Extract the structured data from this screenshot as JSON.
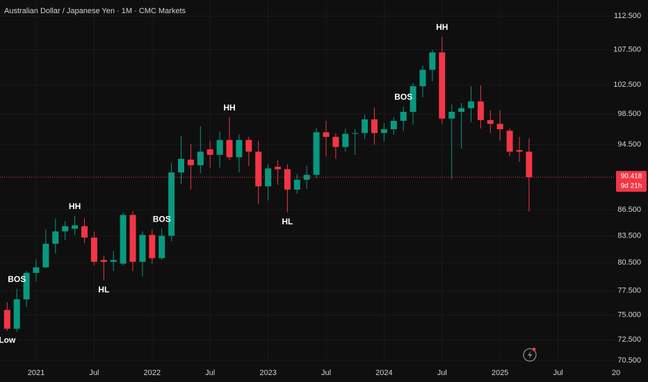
{
  "chart_data": {
    "type": "candlestick",
    "title": "Australian Dollar / Japanese Yen · 1M · CMC Markets",
    "log": true,
    "grid": true,
    "up_color": "#089981",
    "down_color": "#f23645",
    "x": [
      "2020-10",
      "2020-11",
      "2020-12",
      "2021-01",
      "2021-02",
      "2021-03",
      "2021-04",
      "2021-05",
      "2021-06",
      "2021-07",
      "2021-08",
      "2021-09",
      "2021-10",
      "2021-11",
      "2021-12",
      "2022-01",
      "2022-02",
      "2022-03",
      "2022-04",
      "2022-05",
      "2022-06",
      "2022-07",
      "2022-08",
      "2022-09",
      "2022-10",
      "2022-11",
      "2022-12",
      "2023-01",
      "2023-02",
      "2023-03",
      "2023-04",
      "2023-05",
      "2023-06",
      "2023-07",
      "2023-08",
      "2023-09",
      "2023-10",
      "2023-11",
      "2023-12",
      "2024-01",
      "2024-02",
      "2024-03",
      "2024-04",
      "2024-05",
      "2024-06",
      "2024-07",
      "2024-08",
      "2024-09",
      "2024-10",
      "2024-11",
      "2024-12",
      "2025-01",
      "2025-02",
      "2025-03",
      "2025-04"
    ],
    "open": [
      75.5,
      73.6,
      76.6,
      79.4,
      80.0,
      82.6,
      84.0,
      84.3,
      84.6,
      83.3,
      80.8,
      80.6,
      80.4,
      85.9,
      80.6,
      83.6,
      81.0,
      83.5,
      91.0,
      92.6,
      91.9,
      93.9,
      93.2,
      95.1,
      92.9,
      95.1,
      93.6,
      89.3,
      91.7,
      91.4,
      88.9,
      90.1,
      90.7,
      96.1,
      95.5,
      94.2,
      95.9,
      96.0,
      97.8,
      96.0,
      96.5,
      97.6,
      98.8,
      102.3,
      104.6,
      107.1,
      97.9,
      98.8,
      99.3,
      100.2,
      97.7,
      97.2,
      96.3,
      93.8,
      93.6
    ],
    "high": [
      76.3,
      77.7,
      79.6,
      80.9,
      84.2,
      85.5,
      85.2,
      85.8,
      85.5,
      84.0,
      81.3,
      81.8,
      86.2,
      86.3,
      84.0,
      84.2,
      84.3,
      92.2,
      95.6,
      94.6,
      96.9,
      95.0,
      96.2,
      98.1,
      95.8,
      95.5,
      95.0,
      92.0,
      92.5,
      92.0,
      90.8,
      91.8,
      96.7,
      97.6,
      96.0,
      96.6,
      96.5,
      98.4,
      99.4,
      97.3,
      98.1,
      99.5,
      102.7,
      105.2,
      107.5,
      109.4,
      99.8,
      100.0,
      102.3,
      102.4,
      99.0,
      99.0,
      96.6,
      95.5,
      95.3
    ],
    "low": [
      73.4,
      73.3,
      75.8,
      78.5,
      79.9,
      81.5,
      83.0,
      83.6,
      82.7,
      80.2,
      78.6,
      79.6,
      80.2,
      79.6,
      79.0,
      80.4,
      80.8,
      82.9,
      89.6,
      88.9,
      90.9,
      91.6,
      91.6,
      92.5,
      91.0,
      91.8,
      87.2,
      87.6,
      89.5,
      86.2,
      88.4,
      89.0,
      90.3,
      93.0,
      92.7,
      93.6,
      93.2,
      95.2,
      94.5,
      94.9,
      95.8,
      96.3,
      97.1,
      100.8,
      103.0,
      97.2,
      90.2,
      94.0,
      97.4,
      96.6,
      96.0,
      95.0,
      93.0,
      92.3,
      86.3
    ],
    "close": [
      73.6,
      76.6,
      79.4,
      80.0,
      82.6,
      84.0,
      84.6,
      84.7,
      83.3,
      80.6,
      80.6,
      80.8,
      85.9,
      80.6,
      83.6,
      81.0,
      83.5,
      91.0,
      92.7,
      91.9,
      93.6,
      93.2,
      95.1,
      92.9,
      95.1,
      93.6,
      89.3,
      91.5,
      91.4,
      88.9,
      90.1,
      90.7,
      96.1,
      95.5,
      94.2,
      95.9,
      96.0,
      97.8,
      96.0,
      96.5,
      97.6,
      98.8,
      102.3,
      104.6,
      107.1,
      97.9,
      98.8,
      99.3,
      100.2,
      97.7,
      97.2,
      96.5,
      93.6,
      93.6,
      90.418
    ],
    "ylim": [
      70.3,
      115.0
    ],
    "yticks": [
      {
        "value": 112.5,
        "label": "112.500"
      },
      {
        "value": 107.5,
        "label": "107.500"
      },
      {
        "value": 102.5,
        "label": "102.500"
      },
      {
        "value": 98.5,
        "label": "98.500"
      },
      {
        "value": 94.5,
        "label": "94.500"
      },
      {
        "value": 86.5,
        "label": "86.500"
      },
      {
        "value": 83.5,
        "label": "83.500"
      },
      {
        "value": 80.5,
        "label": "80.500"
      },
      {
        "value": 77.5,
        "label": "77.500"
      },
      {
        "value": 75,
        "label": "75.000"
      },
      {
        "value": 72.5,
        "label": "72.500"
      },
      {
        "value": 70.5,
        "label": "70.500"
      }
    ],
    "xticks": [
      {
        "value": "2021-01",
        "label": "2021"
      },
      {
        "value": "2021-07",
        "label": "Jul"
      },
      {
        "value": "2022-01",
        "label": "2022"
      },
      {
        "value": "2022-07",
        "label": "Jul"
      },
      {
        "value": "2023-01",
        "label": "2023"
      },
      {
        "value": "2023-07",
        "label": "Jul"
      },
      {
        "value": "2024-01",
        "label": "2024"
      },
      {
        "value": "2024-07",
        "label": "Jul"
      },
      {
        "value": "2025-01",
        "label": "2025"
      },
      {
        "value": "2025-07",
        "label": "Jul"
      },
      {
        "value": "2026-01",
        "label": "20"
      }
    ],
    "last_price": {
      "value": 90.418,
      "label": "90.418"
    },
    "countdown": "9d 21h",
    "annotations": [
      {
        "text": "Low",
        "x": "2020-10",
        "anchor": "below"
      },
      {
        "text": "BOS",
        "x": "2020-11",
        "anchor": "above"
      },
      {
        "text": "HH",
        "x": "2021-05",
        "anchor": "above"
      },
      {
        "text": "HL",
        "x": "2021-08",
        "anchor": "below"
      },
      {
        "text": "BOS",
        "x": "2022-02",
        "anchor": "above"
      },
      {
        "text": "HH",
        "x": "2022-09",
        "anchor": "above"
      },
      {
        "text": "HL",
        "x": "2023-03",
        "anchor": "below"
      },
      {
        "text": "BOS",
        "x": "2024-03",
        "anchor": "above"
      },
      {
        "text": "HH",
        "x": "2024-07",
        "anchor": "above"
      }
    ]
  }
}
